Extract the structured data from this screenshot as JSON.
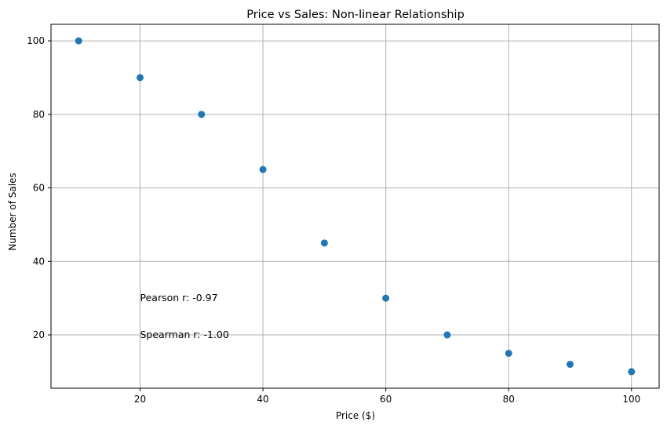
{
  "chart_data": {
    "type": "scatter",
    "title": "Price vs Sales: Non-linear Relationship",
    "xlabel": "Price ($)",
    "ylabel": "Number of Sales",
    "xlim": [
      5.5,
      104.5
    ],
    "ylim": [
      5.5,
      104.5
    ],
    "x_ticks": [
      20,
      40,
      60,
      80,
      100
    ],
    "y_ticks": [
      20,
      40,
      60,
      80,
      100
    ],
    "grid": true,
    "series": [
      {
        "x": [
          10,
          20,
          30,
          40,
          50,
          60,
          70,
          80,
          90,
          100
        ],
        "y": [
          100,
          90,
          80,
          65,
          45,
          30,
          20,
          15,
          12,
          10
        ],
        "color": "#1f77b4"
      }
    ],
    "annotations": [
      {
        "text": "Pearson r: -0.97",
        "x": 20,
        "y": 30
      },
      {
        "text": "Spearman r: -1.00",
        "x": 20,
        "y": 20
      }
    ]
  }
}
